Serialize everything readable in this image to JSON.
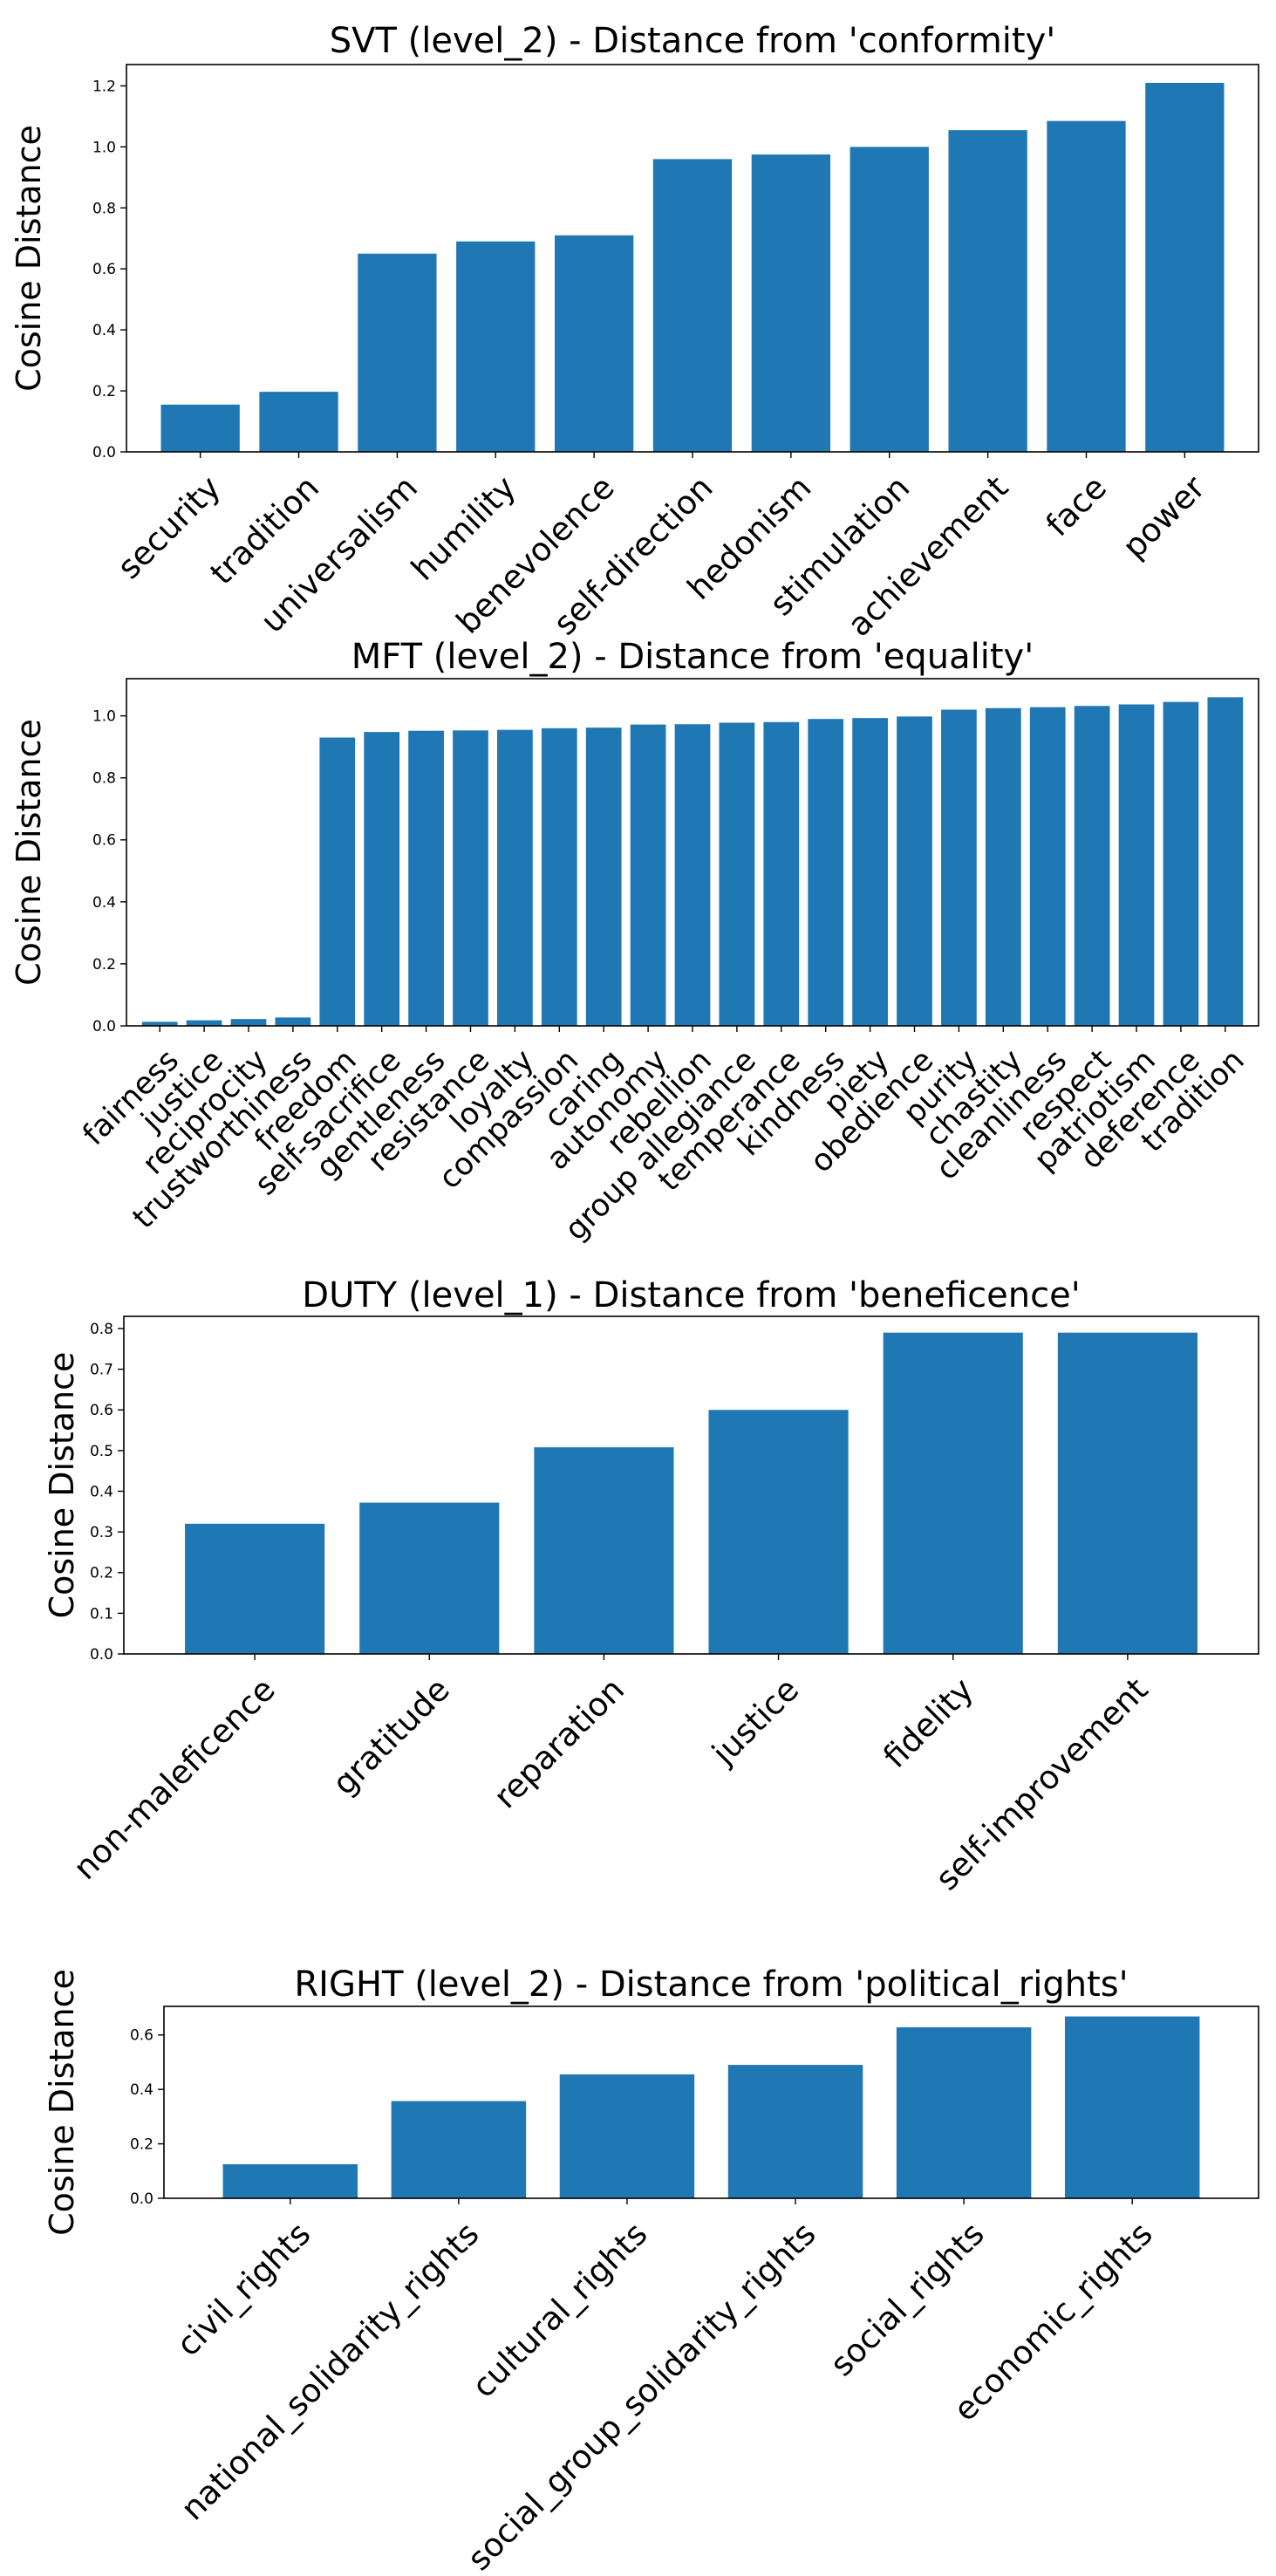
{
  "chart_data": [
    {
      "type": "bar",
      "title": "SVT (level_2) - Distance from 'conformity'",
      "xlabel": "",
      "ylabel": "Cosine Distance",
      "ylim": [
        0,
        1.27
      ],
      "yticks": [
        "0.0",
        "0.2",
        "0.4",
        "0.6",
        "0.8",
        "1.0",
        "1.2"
      ],
      "categories": [
        "security",
        "tradition",
        "universalism",
        "humility",
        "benevolence",
        "self-direction",
        "hedonism",
        "stimulation",
        "achievement",
        "face",
        "power"
      ],
      "values": [
        0.155,
        0.197,
        0.65,
        0.69,
        0.71,
        0.96,
        0.975,
        1.0,
        1.055,
        1.085,
        1.21
      ],
      "color": "#1f77b4",
      "grid": false
    },
    {
      "type": "bar",
      "title": "MFT (level_2) - Distance from 'equality'",
      "xlabel": "",
      "ylabel": "Cosine Distance",
      "ylim": [
        0,
        1.12
      ],
      "yticks": [
        "0.0",
        "0.2",
        "0.4",
        "0.6",
        "0.8",
        "1.0"
      ],
      "categories": [
        "fairness",
        "justice",
        "reciprocity",
        "trustworthiness",
        "freedom",
        "self-sacrifice",
        "gentleness",
        "resistance",
        "loyalty",
        "compassion",
        "caring",
        "autonomy",
        "rebellion",
        "group allegiance",
        "temperance",
        "kindness",
        "piety",
        "obedience",
        "purity",
        "chastity",
        "cleanliness",
        "respect",
        "patriotism",
        "deference",
        "tradition"
      ],
      "values": [
        0.013,
        0.018,
        0.022,
        0.027,
        0.93,
        0.948,
        0.952,
        0.953,
        0.955,
        0.96,
        0.962,
        0.972,
        0.973,
        0.978,
        0.98,
        0.99,
        0.993,
        0.998,
        1.02,
        1.025,
        1.028,
        1.032,
        1.037,
        1.045,
        1.06
      ],
      "color": "#1f77b4",
      "grid": false
    },
    {
      "type": "bar",
      "title": "DUTY (level_1) - Distance from 'beneficence'",
      "xlabel": "",
      "ylabel": "Cosine Distance",
      "ylim": [
        0,
        0.83
      ],
      "yticks": [
        "0.0",
        "0.1",
        "0.2",
        "0.3",
        "0.4",
        "0.5",
        "0.6",
        "0.7",
        "0.8"
      ],
      "categories": [
        "non-maleficence",
        "gratitude",
        "reparation",
        "justice",
        "fidelity",
        "self-improvement"
      ],
      "values": [
        0.32,
        0.372,
        0.508,
        0.6,
        0.79,
        0.79
      ],
      "color": "#1f77b4",
      "grid": false
    },
    {
      "type": "bar",
      "title": "RIGHT (level_2) - Distance from 'political_rights'",
      "xlabel": "",
      "ylabel": "Cosine Distance",
      "ylim": [
        0,
        0.705
      ],
      "yticks": [
        "0.0",
        "0.2",
        "0.4",
        "0.6"
      ],
      "categories": [
        "civil_rights",
        "national_solidarity_rights",
        "cultural_rights",
        "social_group_solidarity_rights",
        "social_rights",
        "economic_rights"
      ],
      "values": [
        0.125,
        0.357,
        0.455,
        0.49,
        0.628,
        0.668
      ],
      "color": "#1f77b4",
      "grid": false
    }
  ]
}
